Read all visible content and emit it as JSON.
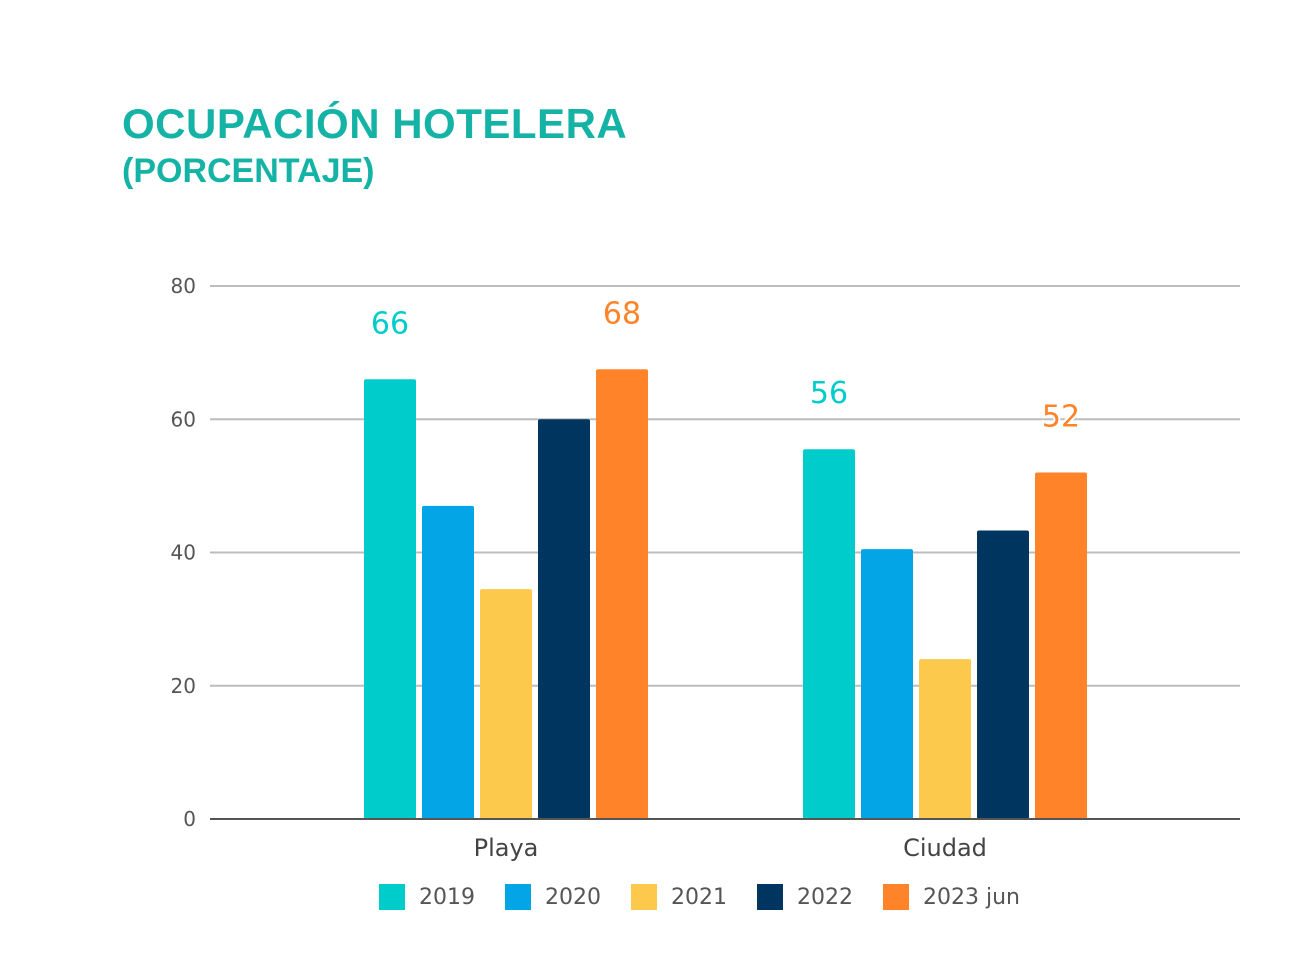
{
  "header": {
    "title": "OCUPACIÓN HOTELERA",
    "subtitle": "(PORCENTAJE)"
  },
  "chart_data": {
    "type": "bar",
    "categories": [
      "Playa",
      "Ciudad"
    ],
    "series": [
      {
        "name": "2019",
        "values": [
          66,
          55.5
        ],
        "color": "#00cccc"
      },
      {
        "name": "2020",
        "values": [
          47,
          40.5
        ],
        "color": "#03a5e6"
      },
      {
        "name": "2021",
        "values": [
          34.5,
          24
        ],
        "color": "#fcc94d"
      },
      {
        "name": "2022",
        "values": [
          60,
          43.3
        ],
        "color": "#003560"
      },
      {
        "name": "2023 jun",
        "values": [
          67.5,
          52
        ],
        "color": "#ff8328"
      }
    ],
    "data_labels": [
      {
        "series": "2019",
        "category": "Playa",
        "text": "66"
      },
      {
        "series": "2023 jun",
        "category": "Playa",
        "text": "68"
      },
      {
        "series": "2019",
        "category": "Ciudad",
        "text": "56"
      },
      {
        "series": "2023 jun",
        "category": "Ciudad",
        "text": "52"
      }
    ],
    "title": "OCUPACIÓN HOTELERA",
    "subtitle": "(PORCENTAJE)",
    "xlabel": "",
    "ylabel": "",
    "ylim": [
      0,
      80
    ],
    "yticks": [
      0,
      20,
      40,
      60,
      80
    ],
    "grid": true,
    "legend_position": "bottom"
  }
}
